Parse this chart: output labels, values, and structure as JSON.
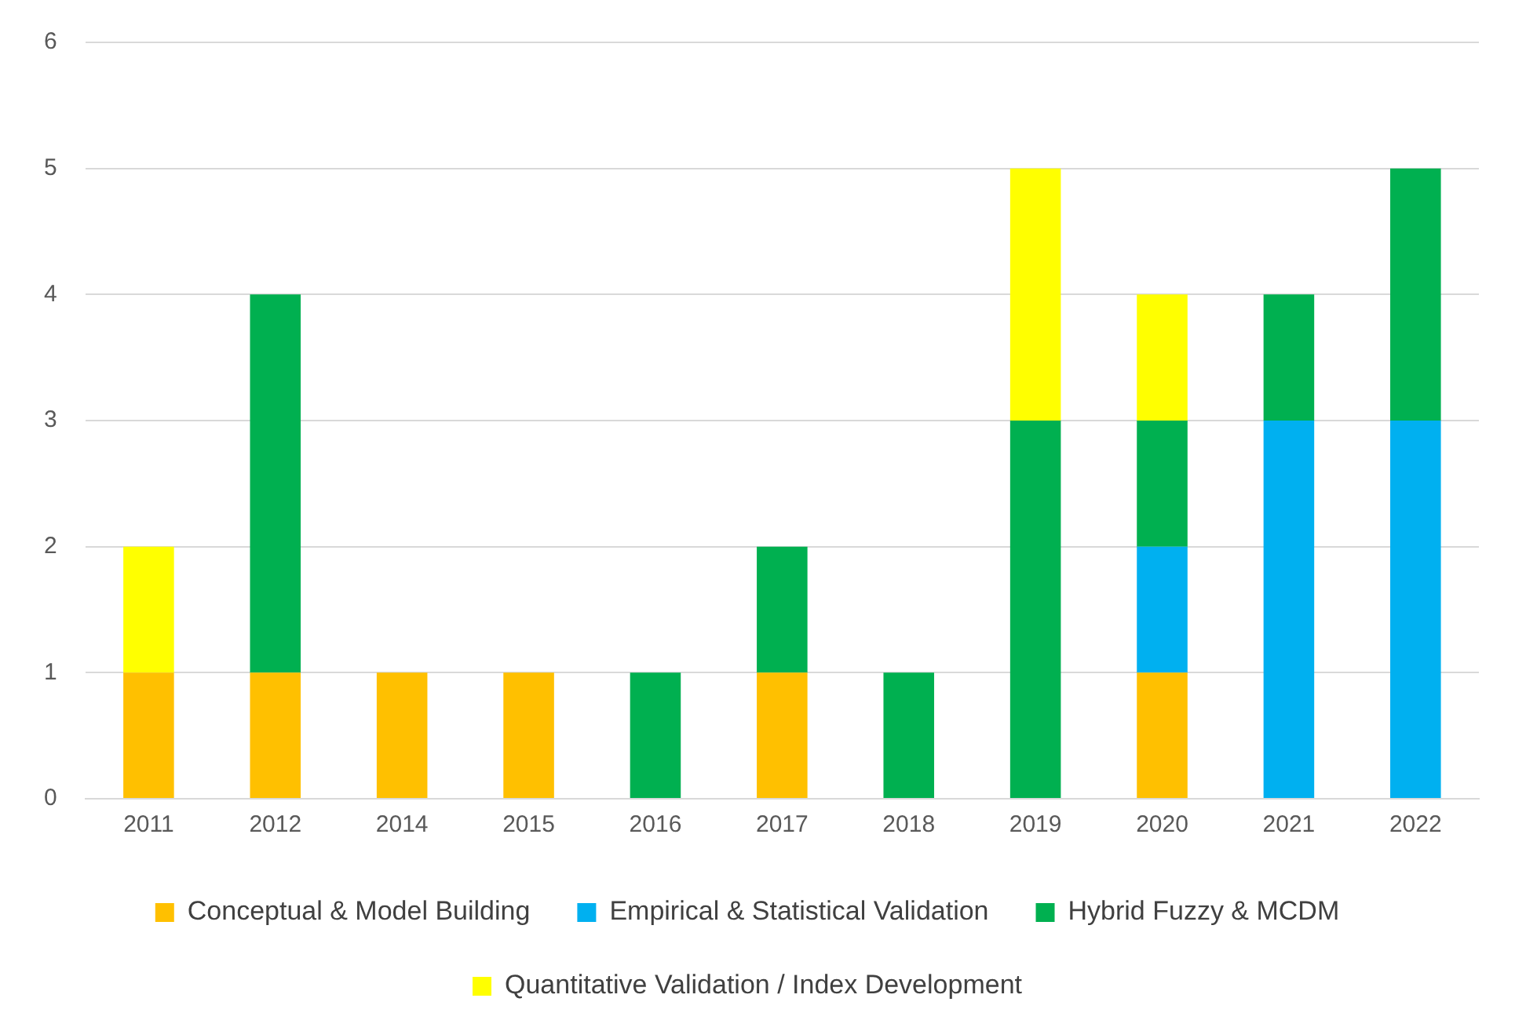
{
  "chart_data": {
    "type": "bar",
    "stacked": true,
    "categories": [
      "2011",
      "2012",
      "2014",
      "2015",
      "2016",
      "2017",
      "2018",
      "2019",
      "2020",
      "2021",
      "2022"
    ],
    "series": [
      {
        "name": "Conceptual & Model Building",
        "color": "#ffc000",
        "values": [
          1,
          1,
          1,
          1,
          null,
          1,
          null,
          null,
          1,
          null,
          null
        ]
      },
      {
        "name": "Empirical & Statistical Validation",
        "color": "#00b0f0",
        "values": [
          null,
          null,
          null,
          null,
          null,
          null,
          null,
          null,
          1,
          3,
          3
        ]
      },
      {
        "name": "Hybrid Fuzzy & MCDM",
        "color": "#00b050",
        "values": [
          null,
          3,
          null,
          null,
          1,
          1,
          1,
          3,
          1,
          1,
          2
        ]
      },
      {
        "name": "Quantitative Validation / Index Development",
        "color": "#ffff00",
        "values": [
          1,
          null,
          null,
          null,
          null,
          null,
          null,
          2,
          1,
          null,
          null
        ]
      }
    ],
    "ylim": [
      0,
      6
    ],
    "yticks": [
      0,
      1,
      2,
      3,
      4,
      5,
      6
    ],
    "grid": "y",
    "legend": "bottom"
  }
}
